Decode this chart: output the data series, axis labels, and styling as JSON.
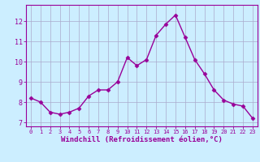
{
  "x": [
    0,
    1,
    2,
    3,
    4,
    5,
    6,
    7,
    8,
    9,
    10,
    11,
    12,
    13,
    14,
    15,
    16,
    17,
    18,
    19,
    20,
    21,
    22,
    23
  ],
  "y": [
    8.2,
    8.0,
    7.5,
    7.4,
    7.5,
    7.7,
    8.3,
    8.6,
    8.6,
    9.0,
    10.2,
    9.8,
    10.1,
    11.3,
    11.85,
    12.3,
    11.2,
    10.1,
    9.4,
    8.6,
    8.1,
    7.9,
    7.8,
    7.2
  ],
  "line_color": "#990099",
  "marker": "D",
  "markersize": 2.5,
  "linewidth": 1.0,
  "xlabel": "Windchill (Refroidissement éolien,°C)",
  "xlabel_fontsize": 6.5,
  "ylim": [
    6.8,
    12.8
  ],
  "xlim": [
    -0.5,
    23.5
  ],
  "yticks": [
    7,
    8,
    9,
    10,
    11,
    12
  ],
  "xticks": [
    0,
    1,
    2,
    3,
    4,
    5,
    6,
    7,
    8,
    9,
    10,
    11,
    12,
    13,
    14,
    15,
    16,
    17,
    18,
    19,
    20,
    21,
    22,
    23
  ],
  "xtick_fontsize": 5.0,
  "ytick_fontsize": 6.0,
  "bg_color": "#cceeff",
  "grid_color": "#aaaacc",
  "grid_linewidth": 0.5,
  "spine_color": "#990099"
}
